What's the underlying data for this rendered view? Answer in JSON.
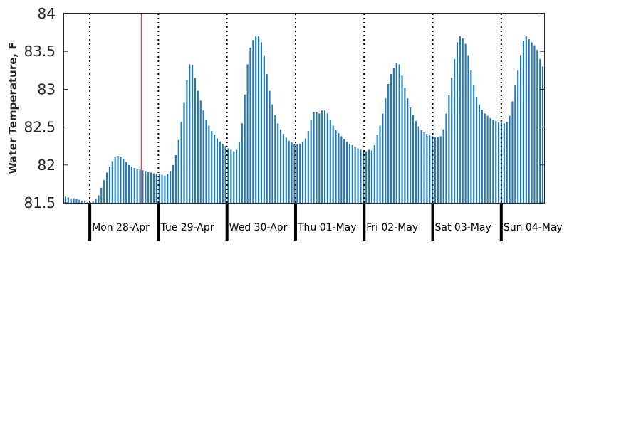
{
  "chart_data": {
    "type": "bar",
    "title": "",
    "xlabel": "",
    "ylabel": "Water Temperature, F",
    "ylim": [
      81.5,
      84
    ],
    "yticks": [
      "81.5",
      "82",
      "82.5",
      "83",
      "83.5",
      "84"
    ],
    "bar_color": "#1f77b4",
    "marker_color": "#e31a1c",
    "day_labels": [
      "Mon 28-Apr",
      "Tue 29-Apr",
      "Wed 30-Apr",
      "Thu 01-May",
      "Fri 02-May",
      "Sat 03-May",
      "Sun 04-May"
    ],
    "x_start_hours": -9,
    "x_end_hours": 159,
    "current_time_hours": 18,
    "values": [
      81.58,
      81.57,
      81.56,
      81.56,
      81.55,
      81.54,
      81.53,
      81.52,
      81.51,
      81.51,
      81.52,
      81.55,
      81.6,
      81.7,
      81.8,
      81.9,
      81.98,
      82.05,
      82.1,
      82.12,
      82.11,
      82.08,
      82.04,
      82.0,
      81.98,
      81.96,
      81.95,
      81.94,
      81.93,
      81.92,
      81.91,
      81.9,
      81.89,
      81.88,
      81.88,
      81.87,
      81.86,
      81.88,
      81.92,
      82.0,
      82.13,
      82.33,
      82.57,
      82.82,
      83.12,
      83.33,
      83.32,
      83.15,
      82.98,
      82.85,
      82.72,
      82.6,
      82.52,
      82.45,
      82.4,
      82.35,
      82.31,
      82.28,
      82.25,
      82.22,
      82.2,
      82.18,
      82.2,
      82.3,
      82.55,
      82.93,
      83.33,
      83.55,
      83.65,
      83.7,
      83.7,
      83.62,
      83.45,
      83.2,
      82.98,
      82.8,
      82.66,
      82.55,
      82.47,
      82.41,
      82.36,
      82.32,
      82.3,
      82.28,
      82.27,
      82.28,
      82.3,
      82.35,
      82.45,
      82.6,
      82.7,
      82.7,
      82.68,
      82.72,
      82.72,
      82.68,
      82.6,
      82.52,
      82.46,
      82.42,
      82.38,
      82.34,
      82.31,
      82.28,
      82.26,
      82.24,
      82.22,
      82.2,
      82.19,
      82.18,
      82.2,
      82.19,
      82.26,
      82.4,
      82.52,
      82.68,
      82.88,
      83.07,
      83.2,
      83.28,
      83.35,
      83.33,
      83.18,
      83.02,
      82.88,
      82.76,
      82.66,
      82.58,
      82.51,
      82.46,
      82.43,
      82.41,
      82.39,
      82.38,
      82.37,
      82.37,
      82.38,
      82.47,
      82.68,
      82.92,
      83.15,
      83.4,
      83.62,
      83.7,
      83.67,
      83.6,
      83.45,
      83.25,
      83.05,
      82.9,
      82.8,
      82.73,
      82.68,
      82.65,
      82.62,
      82.6,
      82.58,
      82.57,
      82.56,
      82.55,
      82.57,
      82.65,
      82.84,
      83.05,
      83.25,
      83.45,
      83.64,
      83.7,
      83.66,
      83.62,
      83.58,
      83.52,
      83.4,
      83.3
    ]
  }
}
